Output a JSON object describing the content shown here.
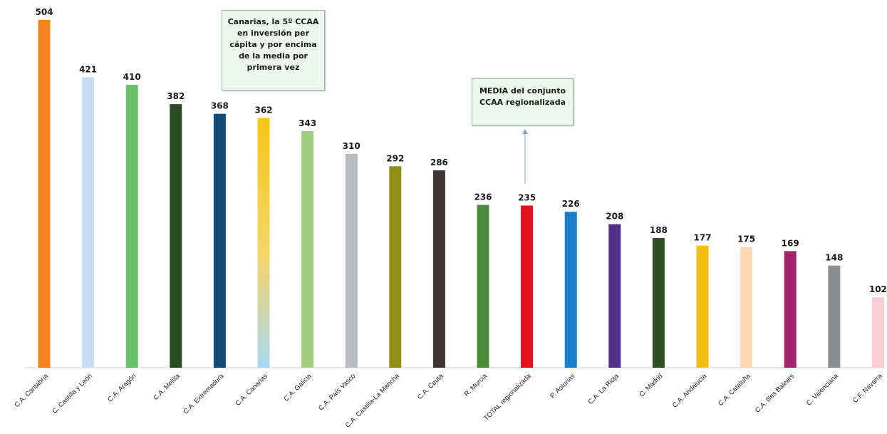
{
  "chart_data": {
    "type": "bar",
    "categories": [
      "C.A. Cantabria",
      "C. Castilla y León",
      "C.A. Aragón",
      "C.A. Melilla",
      "C.A. Extremadura",
      "C.A. Canarias",
      "C.A. Galicia",
      "C.A. País Vasco",
      "C.A. Castilla-La Mancha",
      "C.A. Ceuta",
      "R. Murcia",
      "TOTAL regionalizada",
      "P. Asturias",
      "C.A. La Rioja",
      "C. Madrid",
      "C.A. Andalucía",
      "C.A. Cataluña",
      "C.A. Illes Balears",
      "C. Valenciana",
      "C.F. Navarra"
    ],
    "values": [
      504,
      421,
      410,
      382,
      368,
      362,
      343,
      310,
      292,
      286,
      236,
      235,
      226,
      208,
      188,
      177,
      175,
      169,
      148,
      102
    ],
    "colors": [
      "#f58220",
      "#c6dcf5",
      "#6abf69",
      "#2c4a22",
      "#134b75",
      "#f5c518",
      "#a4cf80",
      "#b9bcc2",
      "#8f8f16",
      "#3b3535",
      "#4e8b3a",
      "#e4101e",
      "#1a7fc8",
      "#51308a",
      "#2f5027",
      "#f2bf0f",
      "#fbd8b4",
      "#a2246c",
      "#8c8e91",
      "#f9ccd6"
    ],
    "ylim": [
      0,
      504
    ],
    "grid": false,
    "annotations": [
      {
        "target": "C.A. Canarias",
        "lines": [
          "Canarias, la 5º CCAA",
          "en inversión per",
          "cápita y por encima",
          "de la media por",
          "primera vez"
        ]
      },
      {
        "target": "TOTAL regionalizada",
        "lines": [
          "MEDIA del conjunto",
          "CCAA regionalizada"
        ]
      }
    ]
  }
}
